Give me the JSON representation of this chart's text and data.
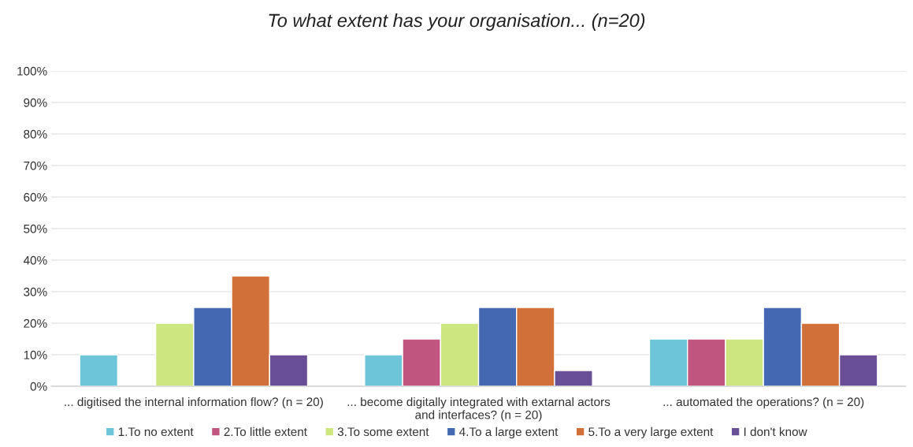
{
  "chart_data": {
    "type": "bar",
    "title": "To what extent has your organisation... (n=20)",
    "categories": [
      "... digitised the internal information flow? (n = 20)",
      "... become digitally integrated with extarnal actors\nand interfaces? (n = 20)",
      "... automated the operations? (n = 20)"
    ],
    "series": [
      {
        "name": "1.To no extent",
        "color": "#6cc5d9",
        "values": [
          10,
          10,
          15
        ]
      },
      {
        "name": "2.To little extent",
        "color": "#c0567f",
        "values": [
          null,
          15,
          15
        ]
      },
      {
        "name": "3.To some extent",
        "color": "#cde67f",
        "values": [
          20,
          20,
          15
        ]
      },
      {
        "name": "4.To a large extent",
        "color": "#4469b2",
        "values": [
          25,
          25,
          25
        ]
      },
      {
        "name": "5.To a very large extent",
        "color": "#d2703a",
        "values": [
          35,
          25,
          20
        ]
      },
      {
        "name": "I don't know",
        "color": "#684f96",
        "values": [
          10,
          5,
          10
        ]
      }
    ],
    "ylim": [
      0,
      100
    ],
    "yticks": [
      {
        "value": 0,
        "label": "0%"
      },
      {
        "value": 10,
        "label": "10%"
      },
      {
        "value": 20,
        "label": "20%"
      },
      {
        "value": 30,
        "label": "30%"
      },
      {
        "value": 40,
        "label": "40%"
      },
      {
        "value": 50,
        "label": "50%"
      },
      {
        "value": 60,
        "label": "60%"
      },
      {
        "value": 70,
        "label": "70%"
      },
      {
        "value": 80,
        "label": "80%"
      },
      {
        "value": 90,
        "label": "90%"
      },
      {
        "value": 100,
        "label": "100%"
      }
    ],
    "grid": "y",
    "legend": "bottom"
  }
}
